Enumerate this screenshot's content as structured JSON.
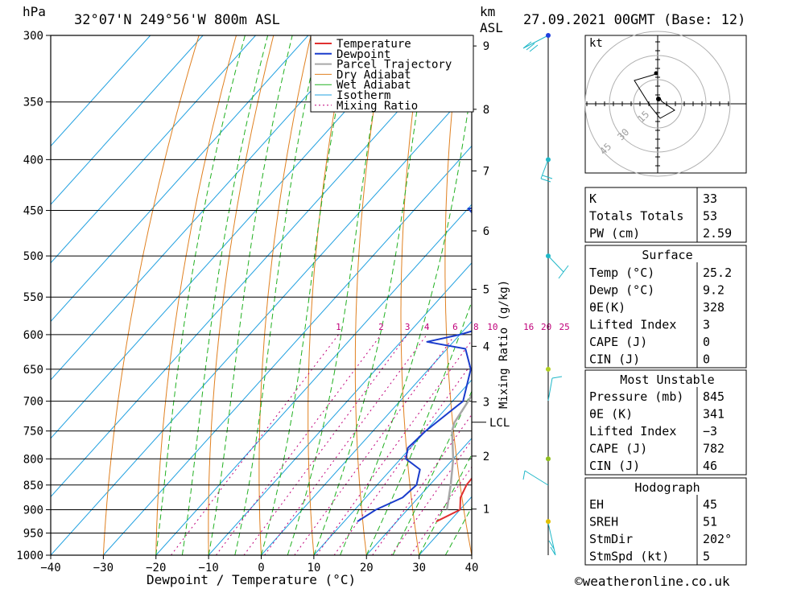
{
  "header": {
    "hpa_label": "hPa",
    "location": "32°07'N  249°56'W  800m  ASL",
    "km_label": "km",
    "asl_label": "ASL",
    "datetime": "27.09.2021  00GMT  (Base: 12)"
  },
  "footer": {
    "credit": "©weatheronline.co.uk"
  },
  "colors": {
    "temperature": "#e03030",
    "dewpoint": "#1a3ccc",
    "parcel": "#a8a8a8",
    "dry_adiabat": "#e08020",
    "wet_adiabat": "#20b020",
    "isotherm": "#20a0e0",
    "mixing_ratio": "#c0007a",
    "wind": "#20b8c8"
  },
  "chart_data": {
    "type": "line",
    "title": "",
    "xlabel": "Dewpoint / Temperature (°C)",
    "ylabel": "hPa",
    "xlim": [
      -40,
      40
    ],
    "ylim": [
      1000,
      300
    ],
    "x_ticks": [
      "−40",
      "−30",
      "−20",
      "−10",
      "0",
      "10",
      "20",
      "30",
      "40"
    ],
    "pressure_ticks": [
      "300",
      "350",
      "400",
      "450",
      "500",
      "550",
      "600",
      "650",
      "700",
      "750",
      "800",
      "850",
      "900",
      "950",
      "1000"
    ],
    "height_km_ticks": [
      "1",
      "2",
      "3",
      "4",
      "5",
      "6",
      "7",
      "8",
      "9"
    ],
    "lcl_label": "LCL",
    "lcl_pressure": 735,
    "mixing_ratio_axis_label": "Mixing Ratio (g/kg)",
    "mixing_ratio_labels": [
      "1",
      "2",
      "3",
      "4",
      "6",
      "8",
      "10",
      "16",
      "20",
      "25"
    ],
    "legend": [
      "Temperature",
      "Dewpoint",
      "Parcel Trajectory",
      "Dry Adiabat",
      "Wet Adiabat",
      "Isotherm",
      "Mixing Ratio"
    ],
    "series": [
      {
        "name": "Temperature",
        "points": [
          [
            925,
            27.5
          ],
          [
            900,
            30
          ],
          [
            875,
            28
          ],
          [
            850,
            27
          ],
          [
            800,
            26.5
          ],
          [
            750,
            24.5
          ],
          [
            700,
            21
          ],
          [
            650,
            17.5
          ],
          [
            600,
            17
          ],
          [
            550,
            13.5
          ],
          [
            500,
            11.5
          ],
          [
            450,
            10.5
          ],
          [
            420,
            8
          ],
          [
            400,
            8
          ],
          [
            350,
            6
          ],
          [
            300,
            3
          ]
        ]
      },
      {
        "name": "Dewpoint",
        "points": [
          [
            925,
            12.5
          ],
          [
            900,
            14
          ],
          [
            875,
            17
          ],
          [
            850,
            17.5
          ],
          [
            820,
            15.5
          ],
          [
            800,
            11
          ],
          [
            780,
            9.5
          ],
          [
            750,
            10
          ],
          [
            700,
            12
          ],
          [
            650,
            8
          ],
          [
            620,
            3.5
          ],
          [
            610,
            -5
          ],
          [
            600,
            0
          ],
          [
            580,
            7
          ],
          [
            550,
            9
          ],
          [
            530,
            5.5
          ],
          [
            520,
            -2.5
          ],
          [
            500,
            1.5
          ],
          [
            475,
            2
          ],
          [
            460,
            -16
          ],
          [
            448,
            -20
          ],
          [
            440,
            -5
          ],
          [
            435,
            -19
          ],
          [
            425,
            1
          ],
          [
            410,
            -4
          ],
          [
            400,
            6
          ],
          [
            350,
            3
          ],
          [
            320,
            1
          ],
          [
            300,
            -3.5
          ]
        ]
      },
      {
        "name": "Parcel Trajectory",
        "points": [
          [
            900,
            27.5
          ],
          [
            850,
            24
          ],
          [
            800,
            20
          ],
          [
            750,
            15
          ],
          [
            735,
            14
          ],
          [
            700,
            13
          ],
          [
            650,
            11
          ],
          [
            600,
            9
          ],
          [
            550,
            7.5
          ],
          [
            500,
            6
          ],
          [
            450,
            4.5
          ],
          [
            400,
            3
          ],
          [
            350,
            0.5
          ],
          [
            300,
            -2
          ]
        ]
      }
    ],
    "wind_pressures_hpa": [
      300,
      400,
      500,
      650,
      800,
      925
    ]
  },
  "indices": {
    "rows": [
      {
        "label": "K",
        "value": "33"
      },
      {
        "label": "Totals Totals",
        "value": "53"
      },
      {
        "label": "PW (cm)",
        "value": "2.59"
      }
    ]
  },
  "surface": {
    "title": "Surface",
    "rows": [
      {
        "label": "Temp (°C)",
        "value": "25.2"
      },
      {
        "label": "Dewp (°C)",
        "value": "9.2"
      },
      {
        "label": "θE(K)",
        "value": "328"
      },
      {
        "label": "Lifted Index",
        "value": "3"
      },
      {
        "label": "CAPE (J)",
        "value": "0"
      },
      {
        "label": "CIN (J)",
        "value": "0"
      }
    ]
  },
  "most_unstable": {
    "title": "Most Unstable",
    "rows": [
      {
        "label": "Pressure (mb)",
        "value": "845"
      },
      {
        "label": "θE (K)",
        "value": "341"
      },
      {
        "label": "Lifted Index",
        "value": "−3"
      },
      {
        "label": "CAPE (J)",
        "value": "782"
      },
      {
        "label": "CIN (J)",
        "value": "46"
      }
    ]
  },
  "hodograph_table": {
    "title": "Hodograph",
    "rows": [
      {
        "label": "EH",
        "value": "45"
      },
      {
        "label": "SREH",
        "value": "51"
      },
      {
        "label": "StmDir",
        "value": "202°"
      },
      {
        "label": "StmSpd (kt)",
        "value": "5"
      }
    ]
  },
  "hodograph": {
    "unit_label": "kt",
    "ring_labels": [
      "15",
      "30",
      "45"
    ]
  }
}
